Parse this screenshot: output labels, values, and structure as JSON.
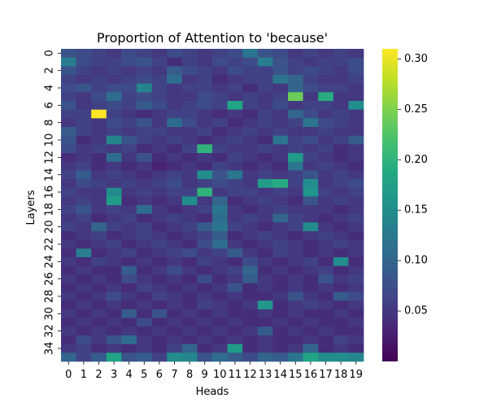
{
  "chart_data": {
    "type": "heatmap",
    "title": "Proportion of Attention to 'because'",
    "xlabel": "Heads",
    "ylabel": "Layers",
    "x_categories": [
      "0",
      "1",
      "2",
      "3",
      "4",
      "5",
      "6",
      "7",
      "8",
      "9",
      "10",
      "11",
      "12",
      "13",
      "14",
      "15",
      "16",
      "17",
      "18",
      "19"
    ],
    "y_tick_labels": [
      "0",
      "2",
      "4",
      "6",
      "8",
      "10",
      "12",
      "14",
      "16",
      "18",
      "20",
      "22",
      "24",
      "26",
      "28",
      "30",
      "32",
      "34"
    ],
    "num_layers": 36,
    "colormap": "viridis",
    "colorbar": {
      "min": 0.0,
      "max": 0.31,
      "ticks": [
        0.05,
        0.1,
        0.15,
        0.2,
        0.25,
        0.3
      ],
      "tick_labels": [
        "0.05",
        "0.10",
        "0.15",
        "0.20",
        "0.25",
        "0.30"
      ]
    },
    "values": [
      [
        0.08,
        0.07,
        0.06,
        0.05,
        0.07,
        0.06,
        0.05,
        0.07,
        0.06,
        0.05,
        0.06,
        0.07,
        0.12,
        0.08,
        0.07,
        0.05,
        0.06,
        0.05,
        0.06,
        0.05
      ],
      [
        0.13,
        0.07,
        0.06,
        0.06,
        0.07,
        0.08,
        0.06,
        0.04,
        0.06,
        0.05,
        0.07,
        0.06,
        0.07,
        0.13,
        0.08,
        0.06,
        0.05,
        0.06,
        0.06,
        0.07
      ],
      [
        0.08,
        0.06,
        0.05,
        0.06,
        0.05,
        0.06,
        0.05,
        0.09,
        0.07,
        0.06,
        0.05,
        0.07,
        0.06,
        0.06,
        0.08,
        0.06,
        0.07,
        0.06,
        0.05,
        0.07
      ],
      [
        0.06,
        0.05,
        0.06,
        0.05,
        0.06,
        0.07,
        0.06,
        0.11,
        0.05,
        0.06,
        0.04,
        0.05,
        0.06,
        0.06,
        0.12,
        0.1,
        0.06,
        0.05,
        0.05,
        0.06
      ],
      [
        0.07,
        0.08,
        0.06,
        0.07,
        0.07,
        0.14,
        0.06,
        0.05,
        0.06,
        0.06,
        0.05,
        0.06,
        0.04,
        0.06,
        0.05,
        0.1,
        0.07,
        0.06,
        0.06,
        0.05
      ],
      [
        0.06,
        0.05,
        0.07,
        0.11,
        0.06,
        0.07,
        0.06,
        0.05,
        0.05,
        0.07,
        0.06,
        0.05,
        0.06,
        0.05,
        0.06,
        0.24,
        0.05,
        0.19,
        0.05,
        0.05
      ],
      [
        0.08,
        0.05,
        0.06,
        0.07,
        0.06,
        0.09,
        0.07,
        0.05,
        0.06,
        0.07,
        0.06,
        0.18,
        0.06,
        0.05,
        0.07,
        0.05,
        0.06,
        0.06,
        0.05,
        0.15
      ],
      [
        0.06,
        0.06,
        0.31,
        0.06,
        0.05,
        0.04,
        0.05,
        0.06,
        0.06,
        0.05,
        0.04,
        0.05,
        0.04,
        0.06,
        0.05,
        0.1,
        0.07,
        0.05,
        0.06,
        0.05
      ],
      [
        0.05,
        0.06,
        0.05,
        0.07,
        0.06,
        0.08,
        0.05,
        0.11,
        0.07,
        0.05,
        0.06,
        0.04,
        0.05,
        0.06,
        0.05,
        0.06,
        0.12,
        0.07,
        0.06,
        0.05
      ],
      [
        0.09,
        0.06,
        0.05,
        0.06,
        0.05,
        0.06,
        0.06,
        0.05,
        0.05,
        0.06,
        0.04,
        0.05,
        0.06,
        0.05,
        0.06,
        0.05,
        0.05,
        0.06,
        0.05,
        0.05
      ],
      [
        0.08,
        0.04,
        0.05,
        0.14,
        0.08,
        0.06,
        0.05,
        0.06,
        0.05,
        0.04,
        0.05,
        0.06,
        0.05,
        0.04,
        0.12,
        0.06,
        0.07,
        0.05,
        0.06,
        0.09
      ],
      [
        0.07,
        0.05,
        0.06,
        0.05,
        0.06,
        0.04,
        0.05,
        0.04,
        0.06,
        0.2,
        0.06,
        0.05,
        0.05,
        0.06,
        0.05,
        0.06,
        0.05,
        0.06,
        0.04,
        0.05
      ],
      [
        0.04,
        0.05,
        0.04,
        0.11,
        0.05,
        0.08,
        0.04,
        0.05,
        0.04,
        0.05,
        0.04,
        0.06,
        0.05,
        0.04,
        0.05,
        0.17,
        0.06,
        0.05,
        0.04,
        0.05
      ],
      [
        0.05,
        0.06,
        0.04,
        0.05,
        0.04,
        0.05,
        0.03,
        0.04,
        0.05,
        0.04,
        0.06,
        0.05,
        0.04,
        0.05,
        0.04,
        0.12,
        0.05,
        0.06,
        0.05,
        0.04
      ],
      [
        0.06,
        0.09,
        0.05,
        0.06,
        0.05,
        0.04,
        0.05,
        0.06,
        0.05,
        0.15,
        0.08,
        0.12,
        0.05,
        0.06,
        0.05,
        0.06,
        0.08,
        0.05,
        0.06,
        0.05
      ],
      [
        0.05,
        0.07,
        0.06,
        0.05,
        0.06,
        0.05,
        0.06,
        0.07,
        0.05,
        0.06,
        0.07,
        0.06,
        0.05,
        0.17,
        0.19,
        0.06,
        0.15,
        0.05,
        0.06,
        0.07
      ],
      [
        0.06,
        0.05,
        0.05,
        0.15,
        0.05,
        0.06,
        0.05,
        0.06,
        0.06,
        0.2,
        0.05,
        0.06,
        0.06,
        0.05,
        0.06,
        0.05,
        0.16,
        0.06,
        0.05,
        0.06
      ],
      [
        0.05,
        0.06,
        0.05,
        0.17,
        0.04,
        0.05,
        0.04,
        0.05,
        0.15,
        0.05,
        0.1,
        0.04,
        0.05,
        0.06,
        0.05,
        0.04,
        0.08,
        0.05,
        0.06,
        0.05
      ],
      [
        0.06,
        0.08,
        0.05,
        0.06,
        0.05,
        0.11,
        0.05,
        0.04,
        0.05,
        0.06,
        0.12,
        0.05,
        0.04,
        0.05,
        0.06,
        0.05,
        0.05,
        0.05,
        0.04,
        0.05
      ],
      [
        0.05,
        0.06,
        0.04,
        0.05,
        0.06,
        0.04,
        0.05,
        0.06,
        0.05,
        0.04,
        0.11,
        0.05,
        0.06,
        0.05,
        0.1,
        0.06,
        0.05,
        0.04,
        0.05,
        0.06
      ],
      [
        0.06,
        0.05,
        0.1,
        0.06,
        0.05,
        0.06,
        0.04,
        0.05,
        0.06,
        0.09,
        0.12,
        0.06,
        0.05,
        0.04,
        0.05,
        0.06,
        0.15,
        0.05,
        0.04,
        0.05
      ],
      [
        0.04,
        0.05,
        0.06,
        0.04,
        0.05,
        0.06,
        0.05,
        0.04,
        0.05,
        0.06,
        0.09,
        0.04,
        0.05,
        0.06,
        0.05,
        0.04,
        0.05,
        0.06,
        0.05,
        0.04
      ],
      [
        0.05,
        0.04,
        0.05,
        0.06,
        0.04,
        0.05,
        0.06,
        0.05,
        0.04,
        0.07,
        0.11,
        0.05,
        0.04,
        0.05,
        0.06,
        0.05,
        0.04,
        0.05,
        0.06,
        0.05
      ],
      [
        0.04,
        0.13,
        0.04,
        0.05,
        0.06,
        0.04,
        0.05,
        0.06,
        0.07,
        0.05,
        0.06,
        0.09,
        0.05,
        0.04,
        0.06,
        0.05,
        0.04,
        0.05,
        0.04,
        0.05
      ],
      [
        0.05,
        0.04,
        0.06,
        0.05,
        0.04,
        0.05,
        0.04,
        0.05,
        0.04,
        0.06,
        0.05,
        0.04,
        0.07,
        0.05,
        0.04,
        0.05,
        0.06,
        0.04,
        0.15,
        0.04
      ],
      [
        0.04,
        0.05,
        0.04,
        0.04,
        0.09,
        0.04,
        0.05,
        0.07,
        0.05,
        0.04,
        0.05,
        0.06,
        0.1,
        0.04,
        0.05,
        0.04,
        0.05,
        0.06,
        0.04,
        0.05
      ],
      [
        0.05,
        0.04,
        0.05,
        0.04,
        0.07,
        0.05,
        0.04,
        0.05,
        0.04,
        0.07,
        0.04,
        0.05,
        0.09,
        0.05,
        0.04,
        0.05,
        0.04,
        0.08,
        0.05,
        0.06
      ],
      [
        0.04,
        0.05,
        0.04,
        0.05,
        0.04,
        0.06,
        0.05,
        0.04,
        0.05,
        0.04,
        0.05,
        0.08,
        0.04,
        0.05,
        0.04,
        0.05,
        0.04,
        0.05,
        0.04,
        0.05
      ],
      [
        0.05,
        0.04,
        0.05,
        0.07,
        0.05,
        0.04,
        0.06,
        0.05,
        0.04,
        0.05,
        0.04,
        0.05,
        0.04,
        0.04,
        0.05,
        0.08,
        0.05,
        0.04,
        0.09,
        0.07
      ],
      [
        0.04,
        0.05,
        0.04,
        0.05,
        0.04,
        0.05,
        0.04,
        0.05,
        0.04,
        0.06,
        0.05,
        0.04,
        0.05,
        0.16,
        0.04,
        0.05,
        0.06,
        0.05,
        0.04,
        0.05
      ],
      [
        0.05,
        0.04,
        0.05,
        0.04,
        0.09,
        0.04,
        0.08,
        0.04,
        0.05,
        0.04,
        0.05,
        0.04,
        0.04,
        0.05,
        0.04,
        0.05,
        0.04,
        0.04,
        0.05,
        0.04
      ],
      [
        0.04,
        0.05,
        0.04,
        0.05,
        0.04,
        0.07,
        0.04,
        0.05,
        0.04,
        0.05,
        0.04,
        0.05,
        0.04,
        0.04,
        0.05,
        0.04,
        0.05,
        0.04,
        0.04,
        0.05
      ],
      [
        0.05,
        0.04,
        0.05,
        0.04,
        0.05,
        0.04,
        0.05,
        0.04,
        0.05,
        0.04,
        0.05,
        0.04,
        0.05,
        0.09,
        0.04,
        0.05,
        0.04,
        0.05,
        0.04,
        0.04
      ],
      [
        0.04,
        0.07,
        0.05,
        0.08,
        0.11,
        0.05,
        0.04,
        0.05,
        0.04,
        0.05,
        0.04,
        0.05,
        0.04,
        0.05,
        0.04,
        0.04,
        0.05,
        0.04,
        0.06,
        0.05
      ],
      [
        0.05,
        0.06,
        0.04,
        0.05,
        0.04,
        0.05,
        0.04,
        0.06,
        0.1,
        0.04,
        0.05,
        0.17,
        0.04,
        0.05,
        0.04,
        0.05,
        0.1,
        0.04,
        0.05,
        0.04
      ],
      [
        0.1,
        0.06,
        0.09,
        0.18,
        0.08,
        0.09,
        0.06,
        0.15,
        0.14,
        0.08,
        0.11,
        0.09,
        0.07,
        0.1,
        0.09,
        0.12,
        0.18,
        0.15,
        0.15,
        0.14
      ]
    ]
  }
}
